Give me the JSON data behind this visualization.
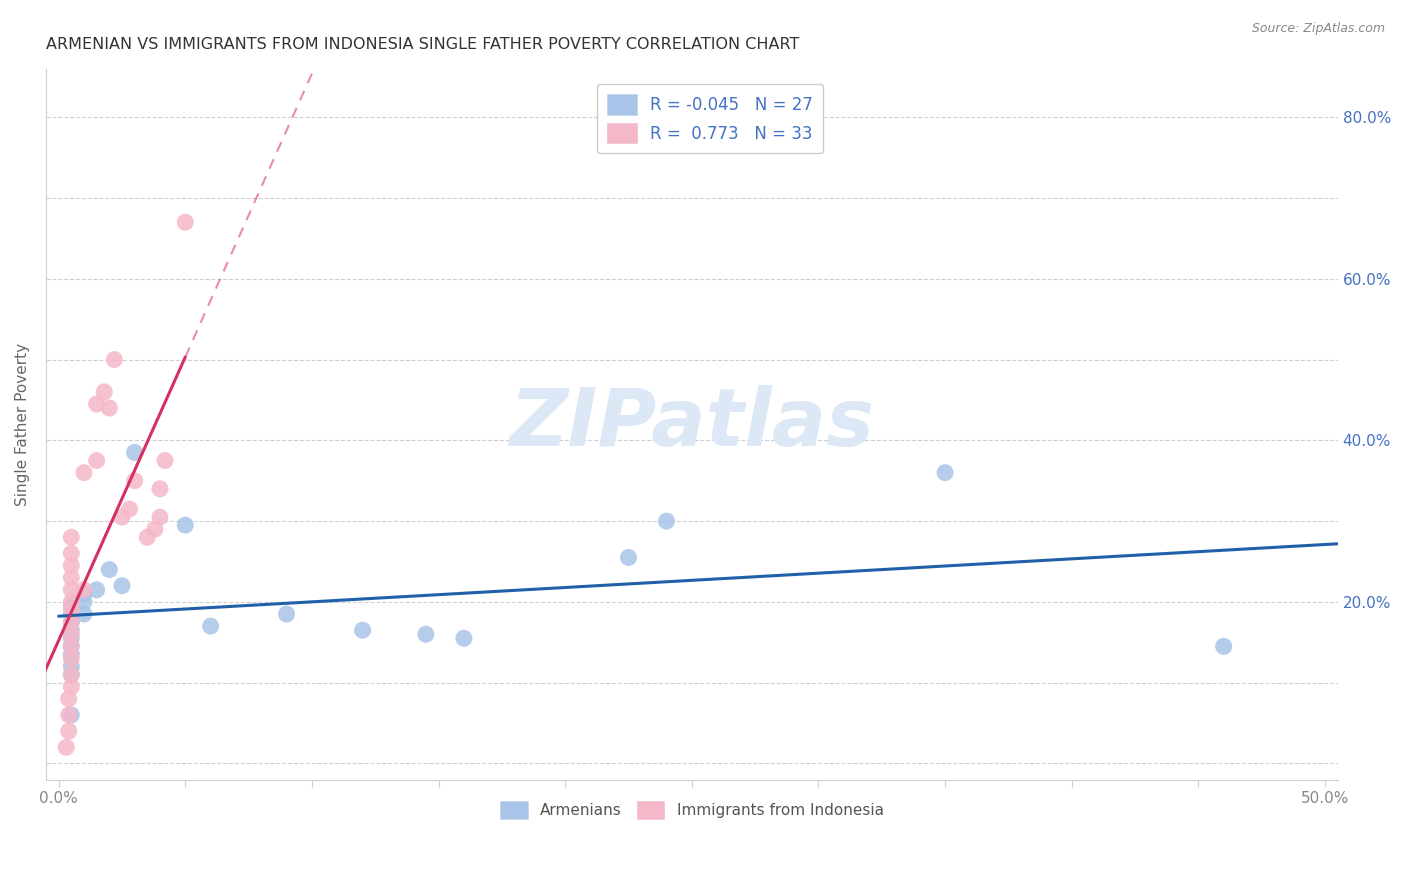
{
  "title": "ARMENIAN VS IMMIGRANTS FROM INDONESIA SINGLE FATHER POVERTY CORRELATION CHART",
  "source": "Source: ZipAtlas.com",
  "ylabel": "Single Father Poverty",
  "xlim": [
    -0.005,
    0.505
  ],
  "ylim": [
    -0.02,
    0.86
  ],
  "xtick_positions": [
    0.0,
    0.05,
    0.1,
    0.15,
    0.2,
    0.25,
    0.3,
    0.35,
    0.4,
    0.45,
    0.5
  ],
  "xtick_labels": [
    "0.0%",
    "",
    "",
    "",
    "",
    "",
    "",
    "",
    "",
    "",
    "50.0%"
  ],
  "ytick_positions": [
    0.0,
    0.1,
    0.2,
    0.3,
    0.4,
    0.5,
    0.6,
    0.7,
    0.8
  ],
  "ytick_labels_right": [
    "",
    "",
    "20.0%",
    "",
    "40.0%",
    "",
    "60.0%",
    "",
    "80.0%"
  ],
  "armenians_x": [
    0.005,
    0.005,
    0.005,
    0.005,
    0.005,
    0.005,
    0.005,
    0.005,
    0.005,
    0.005,
    0.01,
    0.01,
    0.01,
    0.015,
    0.02,
    0.025,
    0.03,
    0.05,
    0.06,
    0.09,
    0.12,
    0.145,
    0.16,
    0.225,
    0.24,
    0.35,
    0.46
  ],
  "armenians_y": [
    0.195,
    0.185,
    0.175,
    0.165,
    0.155,
    0.145,
    0.135,
    0.12,
    0.11,
    0.06,
    0.21,
    0.2,
    0.185,
    0.215,
    0.24,
    0.22,
    0.385,
    0.295,
    0.17,
    0.185,
    0.165,
    0.16,
    0.155,
    0.255,
    0.3,
    0.36,
    0.145
  ],
  "indonesia_x": [
    0.003,
    0.004,
    0.004,
    0.004,
    0.005,
    0.005,
    0.005,
    0.005,
    0.005,
    0.005,
    0.005,
    0.005,
    0.005,
    0.005,
    0.005,
    0.005,
    0.005,
    0.01,
    0.01,
    0.015,
    0.015,
    0.018,
    0.02,
    0.022,
    0.025,
    0.028,
    0.03,
    0.035,
    0.038,
    0.04,
    0.04,
    0.042,
    0.05
  ],
  "indonesia_y": [
    0.02,
    0.04,
    0.06,
    0.08,
    0.095,
    0.11,
    0.13,
    0.145,
    0.16,
    0.175,
    0.19,
    0.2,
    0.215,
    0.23,
    0.245,
    0.26,
    0.28,
    0.215,
    0.36,
    0.375,
    0.445,
    0.46,
    0.44,
    0.5,
    0.305,
    0.315,
    0.35,
    0.28,
    0.29,
    0.305,
    0.34,
    0.375,
    0.67
  ],
  "armenians_R": -0.045,
  "armenians_N": 27,
  "indonesia_R": 0.773,
  "indonesia_N": 33,
  "blue_scatter_color": "#a8c4e8",
  "pink_scatter_color": "#f5b8c8",
  "blue_line_color": "#2060a8",
  "pink_line_color": "#d43060",
  "watermark_color": "#dce8f5",
  "background_color": "#ffffff",
  "grid_color": "#d0d0d0",
  "right_label_color": "#4472c4",
  "title_color": "#333333",
  "axis_label_color": "#666666",
  "tick_color": "#888888"
}
